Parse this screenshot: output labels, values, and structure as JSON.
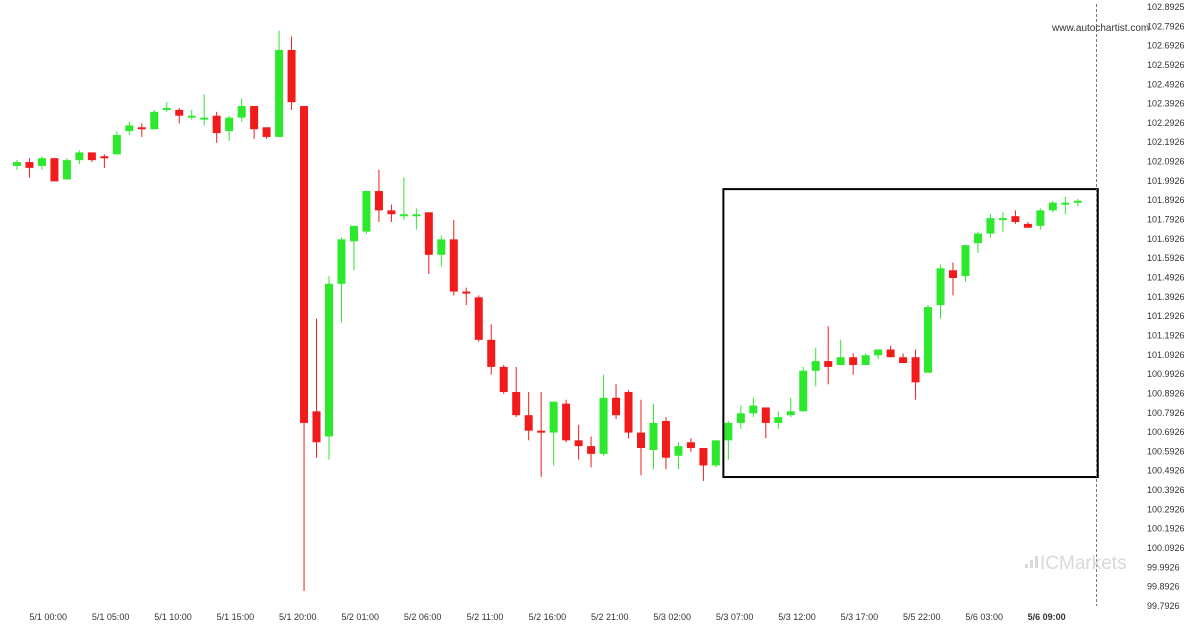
{
  "watermark": "www.autochartist.com",
  "brand": {
    "prefix": "IC",
    "suffix": "Markets"
  },
  "colors": {
    "up": "#2ee82e",
    "down": "#f21b1b",
    "wick": "#9a9a9a",
    "box": "#000000"
  },
  "chart_data": {
    "type": "candlestick",
    "ylim": [
      99.7926,
      102.8925
    ],
    "y_ticks": [
      "102.8925",
      "102.7926",
      "102.6926",
      "102.5926",
      "102.4926",
      "102.3926",
      "102.2926",
      "102.1926",
      "102.0926",
      "101.9926",
      "101.8926",
      "101.7926",
      "101.6926",
      "101.5926",
      "101.4926",
      "101.3926",
      "101.2926",
      "101.1926",
      "101.0926",
      "100.9926",
      "100.8926",
      "100.7926",
      "100.6926",
      "100.5926",
      "100.4926",
      "100.3926",
      "100.2926",
      "100.1926",
      "100.0926",
      "99.9926",
      "99.8926",
      "99.7926"
    ],
    "x_ticks": [
      {
        "label": "5/1 00:00",
        "index": 2.5
      },
      {
        "label": "5/1 05:00",
        "index": 7.5
      },
      {
        "label": "5/1 10:00",
        "index": 12.5
      },
      {
        "label": "5/1 15:00",
        "index": 17.5
      },
      {
        "label": "5/1 20:00",
        "index": 22.5
      },
      {
        "label": "5/2 01:00",
        "index": 27.5
      },
      {
        "label": "5/2 06:00",
        "index": 32.5
      },
      {
        "label": "5/2 11:00",
        "index": 37.5
      },
      {
        "label": "5/2 16:00",
        "index": 42.5
      },
      {
        "label": "5/2 21:00",
        "index": 47.5
      },
      {
        "label": "5/3 02:00",
        "index": 52.5
      },
      {
        "label": "5/3 07:00",
        "index": 57.5
      },
      {
        "label": "5/3 12:00",
        "index": 62.5
      },
      {
        "label": "5/3 17:00",
        "index": 67.5
      },
      {
        "label": "5/5 22:00",
        "index": 72.5
      },
      {
        "label": "5/6 03:00",
        "index": 77.5
      },
      {
        "label": "5/6 09:00",
        "index": 82.5,
        "bold": true
      }
    ],
    "candles": [
      {
        "o": 102.07,
        "h": 102.1,
        "l": 102.05,
        "c": 102.09
      },
      {
        "o": 102.09,
        "h": 102.11,
        "l": 102.01,
        "c": 102.06
      },
      {
        "o": 102.07,
        "h": 102.12,
        "l": 102.05,
        "c": 102.11
      },
      {
        "o": 102.11,
        "h": 102.11,
        "l": 101.99,
        "c": 101.99
      },
      {
        "o": 102.0,
        "h": 102.11,
        "l": 102.0,
        "c": 102.1
      },
      {
        "o": 102.1,
        "h": 102.15,
        "l": 102.08,
        "c": 102.14
      },
      {
        "o": 102.14,
        "h": 102.14,
        "l": 102.09,
        "c": 102.1
      },
      {
        "o": 102.12,
        "h": 102.13,
        "l": 102.06,
        "c": 102.11
      },
      {
        "o": 102.13,
        "h": 102.25,
        "l": 102.13,
        "c": 102.23
      },
      {
        "o": 102.25,
        "h": 102.3,
        "l": 102.23,
        "c": 102.28
      },
      {
        "o": 102.27,
        "h": 102.29,
        "l": 102.22,
        "c": 102.26
      },
      {
        "o": 102.26,
        "h": 102.36,
        "l": 102.26,
        "c": 102.35
      },
      {
        "o": 102.36,
        "h": 102.4,
        "l": 102.35,
        "c": 102.37
      },
      {
        "o": 102.36,
        "h": 102.37,
        "l": 102.29,
        "c": 102.33
      },
      {
        "o": 102.33,
        "h": 102.36,
        "l": 102.31,
        "c": 102.33
      },
      {
        "o": 102.32,
        "h": 102.44,
        "l": 102.28,
        "c": 102.32
      },
      {
        "o": 102.33,
        "h": 102.35,
        "l": 102.19,
        "c": 102.24
      },
      {
        "o": 102.25,
        "h": 102.33,
        "l": 102.2,
        "c": 102.32
      },
      {
        "o": 102.32,
        "h": 102.42,
        "l": 102.3,
        "c": 102.38
      },
      {
        "o": 102.38,
        "h": 102.38,
        "l": 102.21,
        "c": 102.26
      },
      {
        "o": 102.27,
        "h": 102.27,
        "l": 102.21,
        "c": 102.22
      },
      {
        "o": 102.22,
        "h": 102.77,
        "l": 102.22,
        "c": 102.67
      },
      {
        "o": 102.67,
        "h": 102.74,
        "l": 102.36,
        "c": 102.4
      },
      {
        "o": 102.38,
        "h": 102.38,
        "l": 99.87,
        "c": 100.74
      },
      {
        "o": 100.8,
        "h": 101.28,
        "l": 100.56,
        "c": 100.64
      },
      {
        "o": 100.67,
        "h": 101.5,
        "l": 100.55,
        "c": 101.46
      },
      {
        "o": 101.46,
        "h": 101.7,
        "l": 101.26,
        "c": 101.69
      },
      {
        "o": 101.68,
        "h": 101.76,
        "l": 101.53,
        "c": 101.76
      },
      {
        "o": 101.73,
        "h": 101.94,
        "l": 101.72,
        "c": 101.94
      },
      {
        "o": 101.94,
        "h": 102.05,
        "l": 101.78,
        "c": 101.84
      },
      {
        "o": 101.84,
        "h": 101.87,
        "l": 101.78,
        "c": 101.82
      },
      {
        "o": 101.82,
        "h": 102.01,
        "l": 101.79,
        "c": 101.82
      },
      {
        "o": 101.82,
        "h": 101.85,
        "l": 101.74,
        "c": 101.82
      },
      {
        "o": 101.83,
        "h": 101.83,
        "l": 101.51,
        "c": 101.61
      },
      {
        "o": 101.61,
        "h": 101.71,
        "l": 101.55,
        "c": 101.69
      },
      {
        "o": 101.69,
        "h": 101.79,
        "l": 101.4,
        "c": 101.42
      },
      {
        "o": 101.42,
        "h": 101.44,
        "l": 101.35,
        "c": 101.41
      },
      {
        "o": 101.39,
        "h": 101.4,
        "l": 101.16,
        "c": 101.17
      },
      {
        "o": 101.17,
        "h": 101.25,
        "l": 100.99,
        "c": 101.03
      },
      {
        "o": 101.03,
        "h": 101.04,
        "l": 100.89,
        "c": 100.9
      },
      {
        "o": 100.9,
        "h": 101.03,
        "l": 100.77,
        "c": 100.78
      },
      {
        "o": 100.78,
        "h": 100.9,
        "l": 100.65,
        "c": 100.7
      },
      {
        "o": 100.7,
        "h": 100.9,
        "l": 100.46,
        "c": 100.69
      },
      {
        "o": 100.69,
        "h": 100.85,
        "l": 100.52,
        "c": 100.85
      },
      {
        "o": 100.84,
        "h": 100.86,
        "l": 100.64,
        "c": 100.65
      },
      {
        "o": 100.65,
        "h": 100.73,
        "l": 100.55,
        "c": 100.62
      },
      {
        "o": 100.62,
        "h": 100.67,
        "l": 100.51,
        "c": 100.58
      },
      {
        "o": 100.58,
        "h": 100.99,
        "l": 100.57,
        "c": 100.87
      },
      {
        "o": 100.87,
        "h": 100.94,
        "l": 100.76,
        "c": 100.78
      },
      {
        "o": 100.9,
        "h": 100.91,
        "l": 100.66,
        "c": 100.69
      },
      {
        "o": 100.69,
        "h": 100.86,
        "l": 100.47,
        "c": 100.61
      },
      {
        "o": 100.6,
        "h": 100.84,
        "l": 100.5,
        "c": 100.74
      },
      {
        "o": 100.75,
        "h": 100.77,
        "l": 100.5,
        "c": 100.56
      },
      {
        "o": 100.57,
        "h": 100.64,
        "l": 100.5,
        "c": 100.62
      },
      {
        "o": 100.64,
        "h": 100.66,
        "l": 100.59,
        "c": 100.61
      },
      {
        "o": 100.61,
        "h": 100.61,
        "l": 100.44,
        "c": 100.52
      },
      {
        "o": 100.52,
        "h": 100.65,
        "l": 100.51,
        "c": 100.65
      },
      {
        "o": 100.65,
        "h": 100.75,
        "l": 100.55,
        "c": 100.74
      },
      {
        "o": 100.74,
        "h": 100.83,
        "l": 100.71,
        "c": 100.79
      },
      {
        "o": 100.79,
        "h": 100.87,
        "l": 100.77,
        "c": 100.83
      },
      {
        "o": 100.82,
        "h": 100.82,
        "l": 100.66,
        "c": 100.74
      },
      {
        "o": 100.74,
        "h": 100.8,
        "l": 100.71,
        "c": 100.77
      },
      {
        "o": 100.78,
        "h": 100.87,
        "l": 100.77,
        "c": 100.8
      },
      {
        "o": 100.8,
        "h": 101.03,
        "l": 100.8,
        "c": 101.01
      },
      {
        "o": 101.01,
        "h": 101.13,
        "l": 100.93,
        "c": 101.06
      },
      {
        "o": 101.06,
        "h": 101.24,
        "l": 100.94,
        "c": 101.03
      },
      {
        "o": 101.04,
        "h": 101.17,
        "l": 101.04,
        "c": 101.08
      },
      {
        "o": 101.08,
        "h": 101.1,
        "l": 100.99,
        "c": 101.04
      },
      {
        "o": 101.04,
        "h": 101.1,
        "l": 101.04,
        "c": 101.09
      },
      {
        "o": 101.09,
        "h": 101.11,
        "l": 101.07,
        "c": 101.12
      },
      {
        "o": 101.12,
        "h": 101.14,
        "l": 101.08,
        "c": 101.08
      },
      {
        "o": 101.08,
        "h": 101.1,
        "l": 101.06,
        "c": 101.05
      },
      {
        "o": 101.08,
        "h": 101.12,
        "l": 100.86,
        "c": 100.95
      },
      {
        "o": 101.0,
        "h": 101.35,
        "l": 101.0,
        "c": 101.34
      },
      {
        "o": 101.35,
        "h": 101.56,
        "l": 101.28,
        "c": 101.54
      },
      {
        "o": 101.53,
        "h": 101.57,
        "l": 101.4,
        "c": 101.49
      },
      {
        "o": 101.5,
        "h": 101.66,
        "l": 101.47,
        "c": 101.66
      },
      {
        "o": 101.67,
        "h": 101.73,
        "l": 101.62,
        "c": 101.72
      },
      {
        "o": 101.72,
        "h": 101.82,
        "l": 101.7,
        "c": 101.8
      },
      {
        "o": 101.8,
        "h": 101.83,
        "l": 101.73,
        "c": 101.8
      },
      {
        "o": 101.81,
        "h": 101.84,
        "l": 101.77,
        "c": 101.78
      },
      {
        "o": 101.77,
        "h": 101.78,
        "l": 101.76,
        "c": 101.75
      },
      {
        "o": 101.76,
        "h": 101.85,
        "l": 101.74,
        "c": 101.84
      },
      {
        "o": 101.84,
        "h": 101.89,
        "l": 101.83,
        "c": 101.88
      },
      {
        "o": 101.87,
        "h": 101.91,
        "l": 101.82,
        "c": 101.88
      },
      {
        "o": 101.88,
        "h": 101.9,
        "l": 101.86,
        "c": 101.89
      }
    ],
    "pattern_box": {
      "start_index": 56.6,
      "end_index": 86.6,
      "top": 101.95,
      "bottom": 100.46
    },
    "current_time_index": 86.5,
    "grid": false
  }
}
